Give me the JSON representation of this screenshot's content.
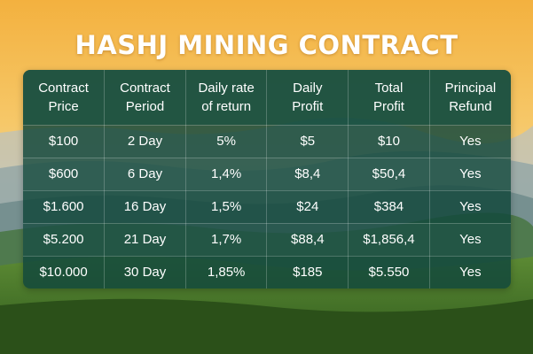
{
  "title": "HASHJ MINING CONTRACT",
  "colors": {
    "panel": "#12483c",
    "text": "#ffffff",
    "sky_top": "#f4b84a",
    "forest": "#3e6b25"
  },
  "table": {
    "headers": [
      [
        "Contract",
        "Price"
      ],
      [
        "Contract",
        "Period"
      ],
      [
        "Daily rate",
        "of return"
      ],
      [
        "Daily",
        "Profit"
      ],
      [
        "Total",
        "Profit"
      ],
      [
        "Principal",
        "Refund"
      ]
    ],
    "rows": [
      [
        "$100",
        "2 Day",
        "5%",
        "$5",
        "$10",
        "Yes"
      ],
      [
        "$600",
        "6 Day",
        "1,4%",
        "$8,4",
        "$50,4",
        "Yes"
      ],
      [
        "$1.600",
        "16 Day",
        "1,5%",
        "$24",
        "$384",
        "Yes"
      ],
      [
        "$5.200",
        "21 Day",
        "1,7%",
        "$88,4",
        "$1,856,4",
        "Yes"
      ],
      [
        "$10.000",
        "30 Day",
        "1,85%",
        "$185",
        "$5.550",
        "Yes"
      ]
    ]
  }
}
